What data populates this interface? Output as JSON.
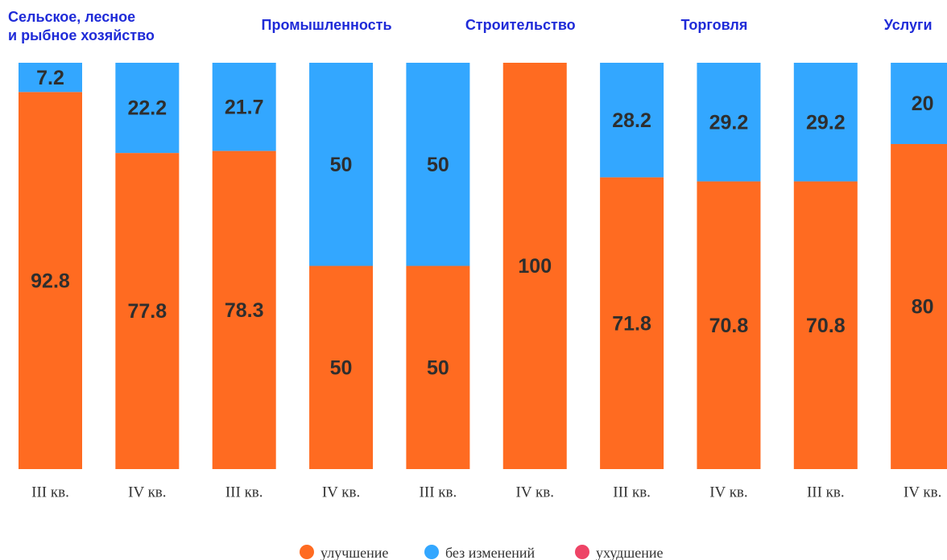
{
  "chart_data": {
    "type": "stacked-bar",
    "groups": [
      [
        "Сельское, лесное",
        "и рыбное хозяйство"
      ],
      [
        "Промышленность"
      ],
      [
        "Строительство"
      ],
      [
        "Торговля"
      ],
      [
        "Услуги"
      ]
    ],
    "categories": [
      "III кв.",
      "IV кв.",
      "III кв.",
      "IV кв.",
      "III кв.",
      "IV кв.",
      "III кв.",
      "IV кв.",
      "III кв.",
      "IV кв."
    ],
    "series": [
      {
        "name": "улучшение",
        "color": "#ff6b21",
        "values": [
          92.8,
          77.8,
          78.3,
          50,
          50,
          100,
          71.8,
          70.8,
          70.8,
          80
        ]
      },
      {
        "name": "без изменений",
        "color": "#33a7ff",
        "values": [
          7.2,
          22.2,
          21.7,
          50,
          50,
          0,
          28.2,
          29.2,
          29.2,
          20
        ]
      },
      {
        "name": "ухудшение",
        "color": "#ee4466",
        "values": [
          0,
          0,
          0,
          0,
          0,
          0,
          0,
          0,
          0,
          0
        ]
      }
    ]
  }
}
